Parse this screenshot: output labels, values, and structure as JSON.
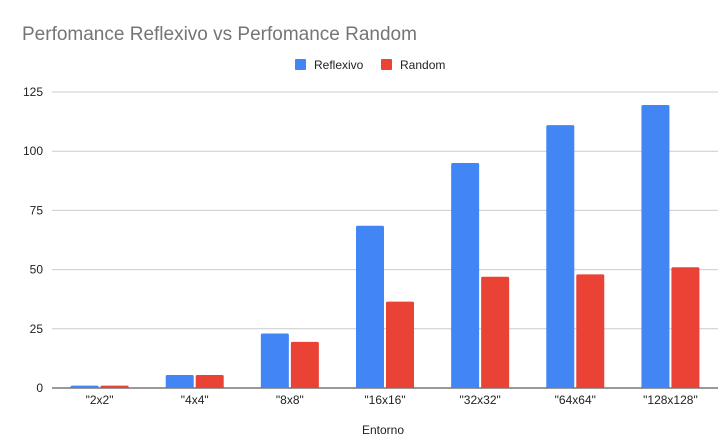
{
  "chart_data": {
    "type": "bar",
    "title": "Perfomance Reflexivo vs Perfomance Random",
    "xlabel": "Entorno",
    "ylabel": "",
    "categories": [
      "\"2x2\"",
      "\"4x4\"",
      "\"8x8\"",
      "\"16x16\"",
      "\"32x32\"",
      "\"64x64\"",
      "\"128x128\""
    ],
    "series": [
      {
        "name": "Reflexivo",
        "color": "#4285f4",
        "values": [
          1,
          5.5,
          23,
          68.5,
          95,
          111,
          119.5
        ]
      },
      {
        "name": "Random",
        "color": "#ea4335",
        "values": [
          1,
          5.5,
          19.5,
          36.5,
          47,
          48,
          51
        ]
      }
    ],
    "ylim": [
      0,
      125
    ],
    "yticks": [
      0,
      25,
      50,
      75,
      100,
      125
    ],
    "grid": true,
    "legend_position": "top-center"
  }
}
